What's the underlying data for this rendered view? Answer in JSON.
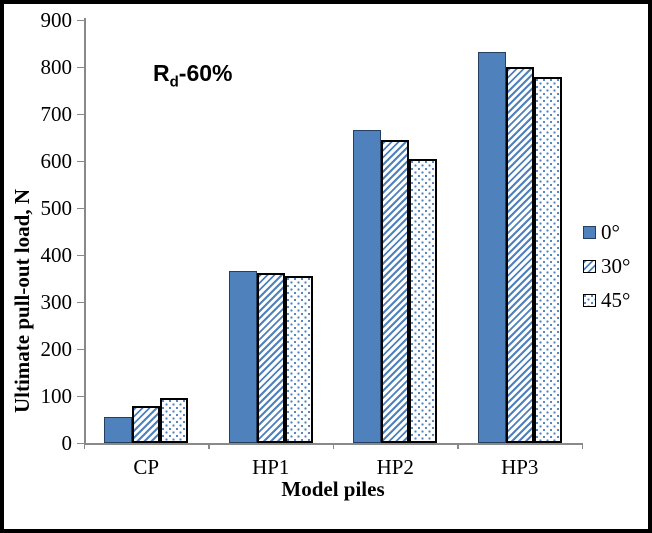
{
  "chart_data": {
    "type": "bar",
    "annotation": {
      "main": "R",
      "sub": "d",
      "rest": "-60%"
    },
    "categories": [
      "CP",
      "HP1",
      "HP2",
      "HP3"
    ],
    "series": [
      {
        "name": "0°",
        "pattern": "solid",
        "values": [
          55,
          365,
          665,
          832
        ]
      },
      {
        "name": "30°",
        "pattern": "hatch",
        "values": [
          78,
          362,
          645,
          800
        ]
      },
      {
        "name": "45°",
        "pattern": "dots",
        "values": [
          95,
          355,
          605,
          778
        ]
      }
    ],
    "xlabel": "Model piles",
    "ylabel": "Ultimate pull-out  load, N",
    "ylim": [
      0,
      900
    ],
    "yticks": [
      0,
      100,
      200,
      300,
      400,
      500,
      600,
      700,
      800,
      900
    ],
    "grid": false,
    "legend_position": "right",
    "colors": {
      "bar_blue": "#4F81BD",
      "solid_border": "#243F60",
      "pattern_border": "#000000",
      "axis": "#898989",
      "text": "#000000",
      "background": "#FFFFFF"
    }
  }
}
